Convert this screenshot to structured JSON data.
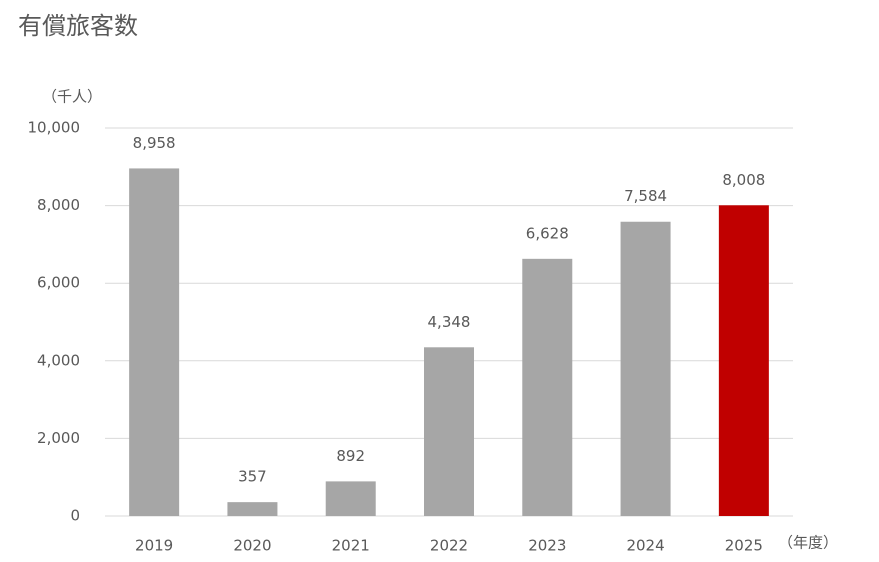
{
  "chart_data": {
    "type": "bar",
    "title": "有償旅客数",
    "y_unit_label": "（千人）",
    "x_unit_label": "（年度）",
    "categories": [
      "2019",
      "2020",
      "2021",
      "2022",
      "2023",
      "2024",
      "2025"
    ],
    "values": [
      8958,
      357,
      892,
      4348,
      6628,
      7584,
      8008
    ],
    "value_labels": [
      "8,958",
      "357",
      "892",
      "4,348",
      "6,628",
      "7,584",
      "8,008"
    ],
    "colors": [
      "#a6a6a6",
      "#a6a6a6",
      "#a6a6a6",
      "#a6a6a6",
      "#a6a6a6",
      "#a6a6a6",
      "#c00000"
    ],
    "ylim": [
      0,
      10000
    ],
    "yticks": [
      0,
      {
        "value": 2000,
        "label": "2,000"
      },
      {
        "value": 4000,
        "label": "4,000"
      },
      {
        "value": 6000,
        "label": "6,000"
      },
      {
        "value": 8000,
        "label": "8,000"
      },
      {
        "value": 10000,
        "label": "10,000"
      }
    ],
    "grid": true
  }
}
